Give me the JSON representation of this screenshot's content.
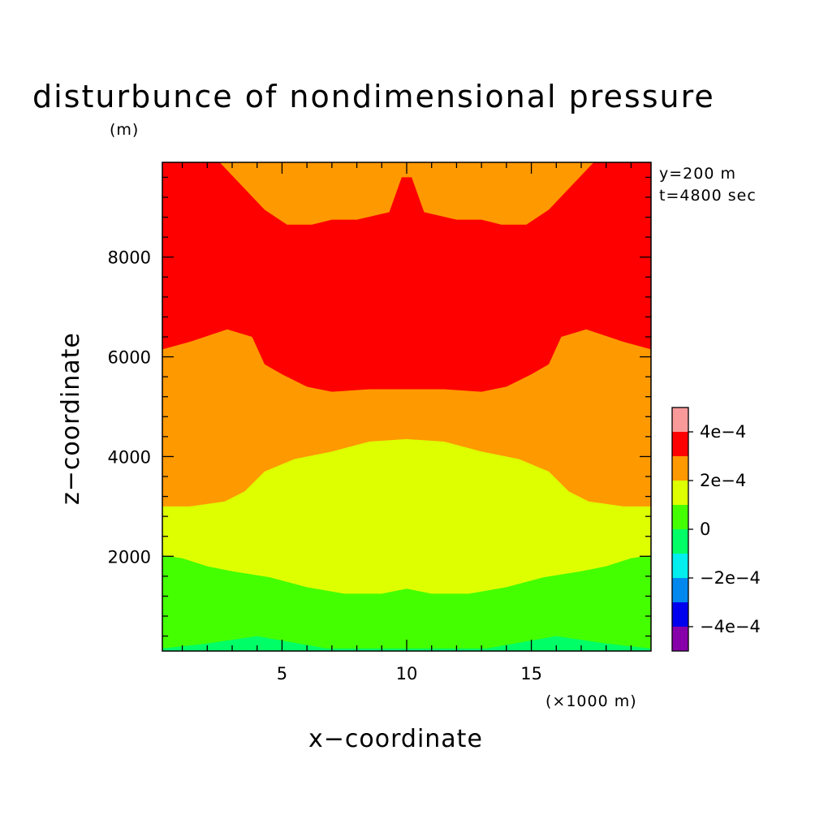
{
  "chart_data": {
    "type": "contour",
    "title": "disturbunce of nondimensional pressure",
    "yunit": "(m)",
    "xlabel": "x−coordinate",
    "ylabel": "z−coordinate",
    "xunit": "(×1000 m)",
    "annotations": [
      "y=200 m",
      "t=4800 sec"
    ],
    "xlim": [
      0.2,
      19.8
    ],
    "ylim": [
      100,
      9900
    ],
    "xticks": [
      5,
      10,
      15
    ],
    "xtick_labels": [
      "5",
      "10",
      "15"
    ],
    "yticks": [
      2000,
      4000,
      6000,
      8000
    ],
    "ytick_labels": [
      "2000",
      "4000",
      "6000",
      "8000"
    ],
    "xminor_step": 1,
    "yminor_step": 400,
    "grid": false,
    "colorbar": {
      "labels": [
        "4e−4",
        "2e−4",
        "0",
        "−2e−4",
        "−4e−4"
      ],
      "colors_top_to_bottom": [
        "#f99a9a",
        "#ff0000",
        "#ff9900",
        "#ddff00",
        "#44ff00",
        "#00ff66",
        "#00eeee",
        "#0088ee",
        "#0000ee",
        "#8800aa"
      ]
    },
    "levels": [
      {
        "name": "0 to 1e-4",
        "color": "#00ff66",
        "boundary_x": [
          0.2,
          2,
          4,
          6.8,
          13.2,
          16,
          18,
          19.8
        ],
        "boundary_z": [
          150,
          250,
          400,
          150,
          150,
          400,
          250,
          150
        ]
      },
      {
        "name": "1e-4 to 2e-4",
        "color": "#44ff00",
        "boundary_x": [
          0.2,
          1,
          2,
          3,
          4.5,
          6,
          7.5,
          9,
          10,
          11,
          12.5,
          14,
          15.5,
          17,
          18,
          19,
          19.8
        ],
        "boundary_z": [
          2020,
          1960,
          1800,
          1700,
          1580,
          1380,
          1250,
          1250,
          1350,
          1250,
          1250,
          1380,
          1580,
          1700,
          1800,
          1960,
          2020
        ]
      },
      {
        "name": "2e-4 to 3e-4",
        "color": "#ddff00",
        "boundary_x": [
          0.2,
          1.3,
          2.7,
          3.5,
          4.3,
          5.5,
          7,
          8.5,
          10,
          11.5,
          13,
          14.5,
          15.7,
          16.5,
          17.3,
          18.7,
          19.8
        ],
        "boundary_z": [
          3000,
          3000,
          3100,
          3300,
          3700,
          3950,
          4100,
          4300,
          4350,
          4300,
          4100,
          3950,
          3700,
          3300,
          3100,
          3000,
          3000
        ]
      },
      {
        "name": "3e-4 to 4e-4",
        "color": "#ff9900",
        "boundary_x": [
          0.2,
          1.3,
          2.8,
          3.8,
          4.3,
          5,
          6,
          7,
          8.5,
          10,
          11.5,
          13,
          14,
          15,
          15.7,
          16.2,
          17.2,
          18.7,
          19.8
        ],
        "boundary_z": [
          6150,
          6300,
          6550,
          6400,
          5850,
          5650,
          5400,
          5300,
          5350,
          5350,
          5350,
          5300,
          5400,
          5650,
          5850,
          6400,
          6550,
          6300,
          6150
        ]
      },
      {
        "name": "above 4e-4 (upper)",
        "color": "#ff0000",
        "boundary_x": [
          0.2,
          1,
          2.5,
          4.3,
          5.2,
          6.2,
          7,
          8,
          9.3,
          9.8,
          10.2,
          10.7,
          12,
          13,
          13.8,
          14.8,
          15.7,
          17.5,
          19,
          19.8
        ],
        "boundary_z": [
          9900,
          9900,
          9900,
          8950,
          8650,
          8650,
          8750,
          8750,
          8900,
          9600,
          9600,
          8900,
          8750,
          8750,
          8650,
          8650,
          8950,
          9900,
          9900,
          9900
        ]
      }
    ]
  }
}
